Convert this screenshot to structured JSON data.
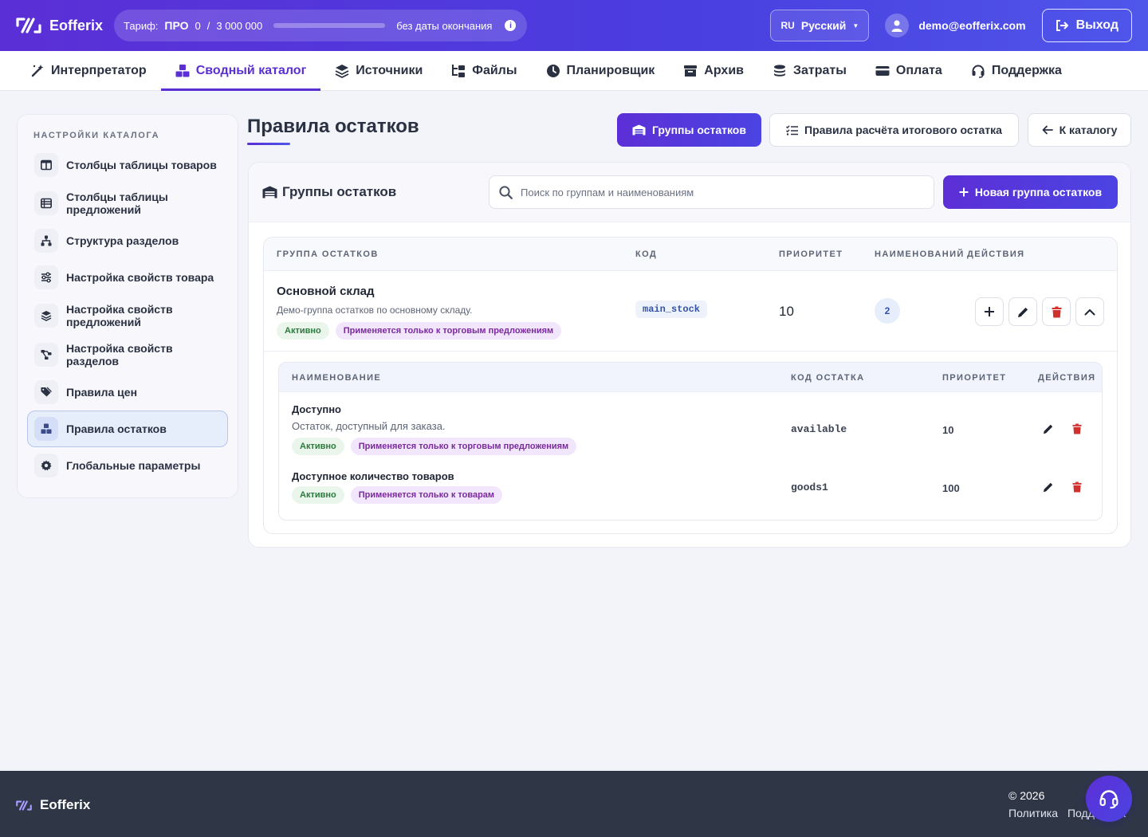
{
  "app": {
    "name": "Eofferix"
  },
  "tariff": {
    "label": "Тариф:",
    "plan": "ПРО",
    "used": "0",
    "separator": "/",
    "limit": "3 000 000",
    "usage_fraction": 0.0,
    "expiry": "без даты окончания",
    "info_icon": "info-icon"
  },
  "language": {
    "code": "RU",
    "label": "Русский"
  },
  "user": {
    "email": "demo@eofferix.com"
  },
  "logout_label": "Выход",
  "nav": [
    {
      "label": "Интерпретатор",
      "icon": "magic-wand-icon"
    },
    {
      "label": "Сводный каталог",
      "icon": "boxes-icon",
      "active": true
    },
    {
      "label": "Источники",
      "icon": "layers-icon"
    },
    {
      "label": "Файлы",
      "icon": "folder-tree-icon"
    },
    {
      "label": "Планировщик",
      "icon": "clock-icon"
    },
    {
      "label": "Архив",
      "icon": "archive-icon"
    },
    {
      "label": "Затраты",
      "icon": "coins-icon"
    },
    {
      "label": "Оплата",
      "icon": "credit-card-icon"
    },
    {
      "label": "Поддержка",
      "icon": "headset-icon"
    }
  ],
  "sidebar": {
    "heading": "НАСТРОЙКИ КАТАЛОГА",
    "items": [
      {
        "label": "Столбцы таблицы товаров",
        "icon": "columns-icon"
      },
      {
        "label": "Столбцы таблицы предложений",
        "icon": "table-list-icon"
      },
      {
        "label": "Структура разделов",
        "icon": "sitemap-icon"
      },
      {
        "label": "Настройка свойств товара",
        "icon": "sliders-icon"
      },
      {
        "label": "Настройка свойств предложений",
        "icon": "layer-group-icon"
      },
      {
        "label": "Настройка свойств разделов",
        "icon": "diagram-icon"
      },
      {
        "label": "Правила цен",
        "icon": "tags-icon"
      },
      {
        "label": "Правила остатков",
        "icon": "boxes-icon",
        "active": true
      },
      {
        "label": "Глобальные параметры",
        "icon": "gear-icon"
      }
    ]
  },
  "page": {
    "title": "Правила остатков",
    "btn_groups": "Группы остатков",
    "btn_rules": "Правила расчёта итогового остатка",
    "btn_back": "К каталогу"
  },
  "card": {
    "title": "Группы остатков",
    "search_placeholder": "Поиск по группам и наименованиям",
    "new_button": "Новая группа остатков"
  },
  "table": {
    "headers": {
      "group": "ГРУППА ОСТАТКОВ",
      "code": "КОД",
      "priority": "ПРИОРИТЕТ",
      "count": "НАИМЕНОВАНИЙ",
      "actions": "ДЕЙСТВИЯ"
    },
    "group": {
      "name": "Основной склад",
      "description": "Демо-группа остатков по основному складу.",
      "status": "Активно",
      "scope": "Применяется только к торговым предложениям",
      "code": "main_stock",
      "priority": "10",
      "count": "2"
    }
  },
  "subtable": {
    "headers": {
      "name": "НАИМЕНОВАНИЕ",
      "code": "КОД ОСТАТКА",
      "priority": "ПРИОРИТЕТ",
      "actions": "ДЕЙСТВИЯ"
    },
    "rows": [
      {
        "name": "Доступно",
        "description": "Остаток, доступный для заказа.",
        "status": "Активно",
        "scope": "Применяется только к торговым предложениям",
        "code": "available",
        "priority": "10"
      },
      {
        "name": "Доступное количество товаров",
        "status": "Активно",
        "scope": "Применяется только к товарам",
        "code": "goods1",
        "priority": "100"
      }
    ]
  },
  "footer": {
    "brand": "Eofferix",
    "copyright": "© 2026",
    "links": [
      "Политика",
      "Поддержка"
    ]
  },
  "colors": {
    "accent": "#5a2fd3",
    "header_gradient_start": "#5b2fd6",
    "header_gradient_end": "#4f56ea",
    "danger": "#d0312d",
    "success_bg": "#eaf6ec",
    "success_text": "#2c7a3d",
    "scope_bg": "#f1e6fb",
    "scope_text": "#7a2a9c",
    "footer_bg": "#2f3747"
  }
}
